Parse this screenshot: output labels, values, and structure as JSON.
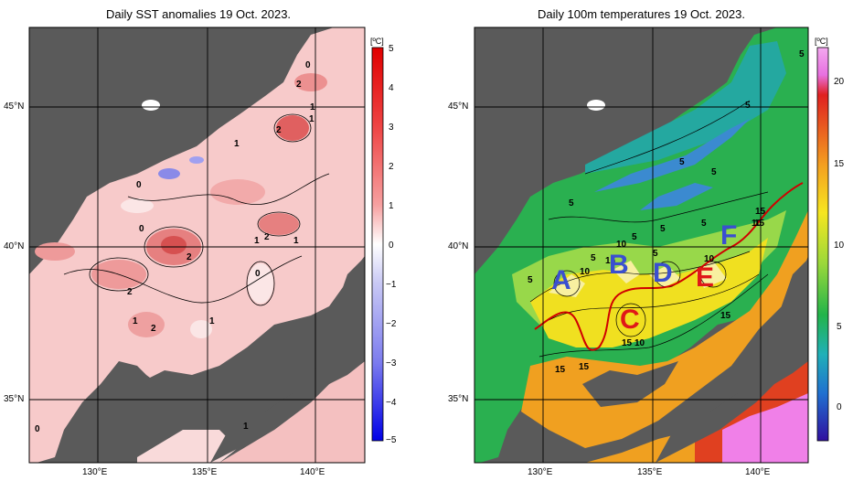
{
  "left_panel": {
    "title": "Daily SST anomalies 19 Oct. 2023.",
    "unit": "[ºC]",
    "colorbar_ticks": [
      "5",
      "4",
      "3",
      "2",
      "1",
      "0",
      "−1",
      "−2",
      "−3",
      "−4",
      "−5"
    ],
    "lat_labels": [
      "45°N",
      "40°N",
      "35°N"
    ],
    "lon_labels": [
      "130°E",
      "135°E",
      "140°E"
    ],
    "contour_labels": [
      "0",
      "2",
      "1",
      "1",
      "2",
      "1",
      "0",
      "0",
      "2",
      "1",
      "2",
      "0",
      "2",
      "1",
      "2",
      "1",
      "1",
      "0",
      "1"
    ]
  },
  "right_panel": {
    "title": "Daily 100m temperatures 19 Oct. 2023.",
    "unit": "[ºC]",
    "colorbar_ticks": [
      "20",
      "15",
      "10",
      "5",
      "0"
    ],
    "lat_labels": [
      "45°N",
      "40°N",
      "35°N"
    ],
    "lon_labels": [
      "130°E",
      "135°E",
      "140°E"
    ],
    "contour_labels": [
      "5",
      "5",
      "5",
      "5",
      "5",
      "5",
      "5",
      "5",
      "5",
      "5",
      "10",
      "5",
      "10",
      "10",
      "10",
      "15",
      "15",
      "15",
      "15",
      "15",
      "10",
      "15",
      "15"
    ],
    "regions": [
      "A",
      "B",
      "C",
      "D",
      "E",
      "F"
    ]
  },
  "colors": {
    "land": "#5a5a5a",
    "coast_gray": "#bdbdbd",
    "grid": "#000000",
    "region_blue": "#3a4fd0",
    "region_red": "#e01818",
    "front_line": "#d00000"
  }
}
